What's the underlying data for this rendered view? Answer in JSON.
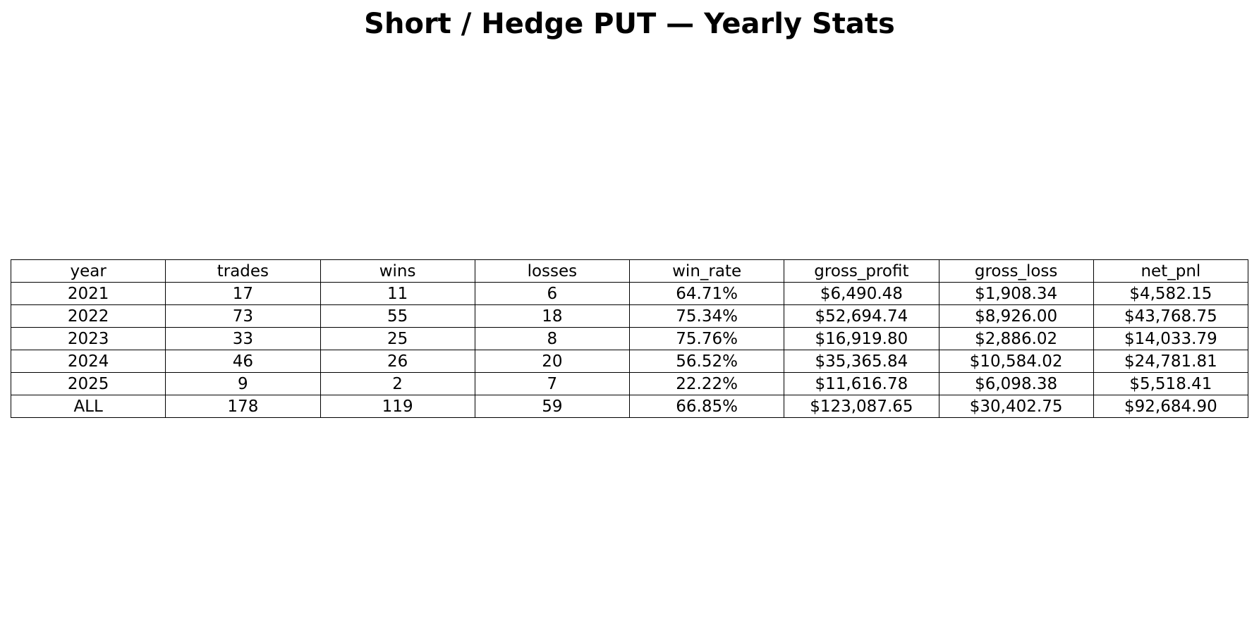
{
  "chart_data": {
    "type": "table",
    "title": "Short / Hedge PUT — Yearly Stats",
    "columns": [
      "year",
      "trades",
      "wins",
      "losses",
      "win_rate",
      "gross_profit",
      "gross_loss",
      "net_pnl"
    ],
    "rows": [
      [
        "2021",
        "17",
        "11",
        "6",
        "64.71%",
        "$6,490.48",
        "$1,908.34",
        "$4,582.15"
      ],
      [
        "2022",
        "73",
        "55",
        "18",
        "75.34%",
        "$52,694.74",
        "$8,926.00",
        "$43,768.75"
      ],
      [
        "2023",
        "33",
        "25",
        "8",
        "75.76%",
        "$16,919.80",
        "$2,886.02",
        "$14,033.79"
      ],
      [
        "2024",
        "46",
        "26",
        "20",
        "56.52%",
        "$35,365.84",
        "$10,584.02",
        "$24,781.81"
      ],
      [
        "2025",
        "9",
        "2",
        "7",
        "22.22%",
        "$11,616.78",
        "$6,098.38",
        "$5,518.41"
      ],
      [
        "ALL",
        "178",
        "119",
        "59",
        "66.85%",
        "$123,087.65",
        "$30,402.75",
        "$92,684.90"
      ]
    ],
    "colors": {
      "background": "#ffffff",
      "text": "#000000",
      "border": "#000000"
    }
  }
}
